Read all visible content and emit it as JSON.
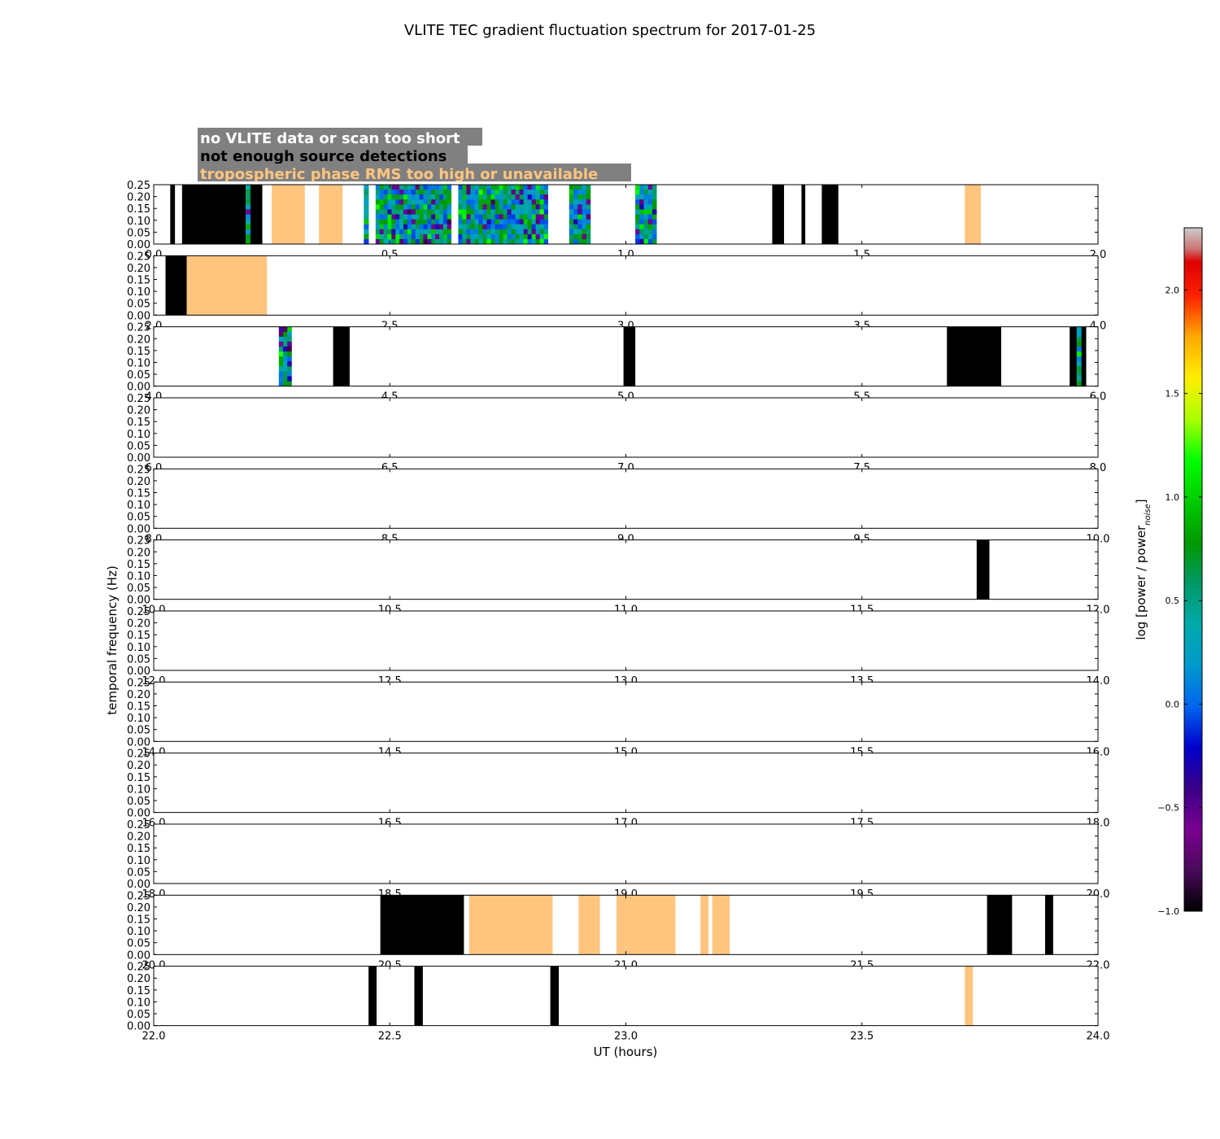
{
  "chart_data": {
    "type": "heatmap",
    "title": "VLITE TEC gradient fluctuation spectrum for 2017-01-25",
    "xlabel": "UT (hours)",
    "ylabel": "temporal frequency (Hz)",
    "ylim": [
      0,
      0.25
    ],
    "yticks": [
      "0.00",
      "0.05",
      "0.10",
      "0.15",
      "0.20",
      "0.25"
    ],
    "legend": [
      {
        "label": "no VLITE data or scan too short",
        "text_color": "#ffffff",
        "category": "white"
      },
      {
        "label": "not enough source detections",
        "text_color": "#000000",
        "category": "black"
      },
      {
        "label": "tropospheric phase RMS too high or unavailable",
        "text_color": "#ffc57f",
        "category": "orange"
      }
    ],
    "colorbar": {
      "label": "log [power / power",
      "label_sub": "noise",
      "label_end": "]",
      "range": [
        -1.0,
        2.3
      ],
      "ticks": [
        "−1.0",
        "−0.5",
        "0.0",
        "0.5",
        "1.0",
        "1.5",
        "2.0"
      ],
      "tick_values": [
        -1.0,
        -0.5,
        0.0,
        0.5,
        1.0,
        1.5,
        2.0
      ]
    },
    "colors": {
      "black": "#000000",
      "orange": "#ffc57f",
      "frame": "#000000",
      "legend_box": "#808080"
    },
    "panels": [
      {
        "xlim": [
          0,
          2
        ],
        "xticks": [
          "0.0",
          "0.5",
          "1.0",
          "1.5",
          "2.0"
        ],
        "segments": [
          {
            "t0": 0.035,
            "t1": 0.045,
            "type": "black"
          },
          {
            "t0": 0.06,
            "t1": 0.195,
            "type": "black"
          },
          {
            "t0": 0.195,
            "t1": 0.205,
            "type": "spectrum",
            "seed": 1
          },
          {
            "t0": 0.205,
            "t1": 0.23,
            "type": "black"
          },
          {
            "t0": 0.25,
            "t1": 0.32,
            "type": "orange"
          },
          {
            "t0": 0.35,
            "t1": 0.4,
            "type": "orange"
          },
          {
            "t0": 0.445,
            "t1": 0.455,
            "type": "spectrum",
            "seed": 2
          },
          {
            "t0": 0.47,
            "t1": 0.63,
            "type": "spectrum",
            "seed": 3
          },
          {
            "t0": 0.645,
            "t1": 0.835,
            "type": "spectrum",
            "seed": 4
          },
          {
            "t0": 0.88,
            "t1": 0.925,
            "type": "spectrum",
            "seed": 5
          },
          {
            "t0": 1.02,
            "t1": 1.065,
            "type": "spectrum",
            "seed": 6
          },
          {
            "t0": 1.31,
            "t1": 1.335,
            "type": "black"
          },
          {
            "t0": 1.372,
            "t1": 1.38,
            "type": "black"
          },
          {
            "t0": 1.415,
            "t1": 1.45,
            "type": "black"
          },
          {
            "t0": 1.718,
            "t1": 1.752,
            "type": "orange"
          }
        ]
      },
      {
        "xlim": [
          2,
          4
        ],
        "xticks": [
          "2.0",
          "2.5",
          "3.0",
          "3.5",
          "4.0"
        ],
        "segments": [
          {
            "t0": 2.025,
            "t1": 2.07,
            "type": "black"
          },
          {
            "t0": 2.07,
            "t1": 2.24,
            "type": "orange"
          }
        ]
      },
      {
        "xlim": [
          4,
          6
        ],
        "xticks": [
          "4.0",
          "4.5",
          "5.0",
          "5.5",
          "6.0"
        ],
        "segments": [
          {
            "t0": 4.265,
            "t1": 4.292,
            "type": "spectrum",
            "seed": 7
          },
          {
            "t0": 4.38,
            "t1": 4.415,
            "type": "black"
          },
          {
            "t0": 4.995,
            "t1": 5.02,
            "type": "black"
          },
          {
            "t0": 5.68,
            "t1": 5.795,
            "type": "black"
          },
          {
            "t0": 5.94,
            "t1": 5.955,
            "type": "black"
          },
          {
            "t0": 5.955,
            "t1": 5.965,
            "type": "spectrum",
            "seed": 8
          },
          {
            "t0": 5.965,
            "t1": 5.975,
            "type": "black"
          }
        ]
      },
      {
        "xlim": [
          6,
          8
        ],
        "xticks": [
          "6.0",
          "6.5",
          "7.0",
          "7.5",
          "8.0"
        ],
        "segments": []
      },
      {
        "xlim": [
          8,
          10
        ],
        "xticks": [
          "8.0",
          "8.5",
          "9.0",
          "9.5",
          "10.0"
        ],
        "segments": []
      },
      {
        "xlim": [
          10,
          12
        ],
        "xticks": [
          "10.0",
          "10.5",
          "11.0",
          "11.5",
          "12.0"
        ],
        "segments": [
          {
            "t0": 11.743,
            "t1": 11.77,
            "type": "black"
          }
        ]
      },
      {
        "xlim": [
          12,
          14
        ],
        "xticks": [
          "12.0",
          "12.5",
          "13.0",
          "13.5",
          "14.0"
        ],
        "segments": []
      },
      {
        "xlim": [
          14,
          16
        ],
        "xticks": [
          "14.0",
          "14.5",
          "15.0",
          "15.5",
          "16.0"
        ],
        "segments": []
      },
      {
        "xlim": [
          16,
          18
        ],
        "xticks": [
          "16.0",
          "16.5",
          "17.0",
          "17.5",
          "18.0"
        ],
        "segments": []
      },
      {
        "xlim": [
          18,
          20
        ],
        "xticks": [
          "18.0",
          "18.5",
          "19.0",
          "19.5",
          "20.0"
        ],
        "segments": []
      },
      {
        "xlim": [
          20,
          22
        ],
        "xticks": [
          "20.0",
          "20.5",
          "21.0",
          "21.5",
          "22.0"
        ],
        "segments": [
          {
            "t0": 20.48,
            "t1": 20.657,
            "type": "black"
          },
          {
            "t0": 20.668,
            "t1": 20.845,
            "type": "orange"
          },
          {
            "t0": 20.9,
            "t1": 20.945,
            "type": "orange"
          },
          {
            "t0": 20.98,
            "t1": 21.105,
            "type": "orange"
          },
          {
            "t0": 21.158,
            "t1": 21.175,
            "type": "orange"
          },
          {
            "t0": 21.183,
            "t1": 21.22,
            "type": "orange"
          },
          {
            "t0": 21.765,
            "t1": 21.818,
            "type": "black"
          },
          {
            "t0": 21.888,
            "t1": 21.905,
            "type": "black"
          }
        ]
      },
      {
        "xlim": [
          22,
          24
        ],
        "xticks": [
          "22.0",
          "22.5",
          "23.0",
          "23.5",
          "24.0"
        ],
        "segments": [
          {
            "t0": 22.455,
            "t1": 22.472,
            "type": "black"
          },
          {
            "t0": 22.552,
            "t1": 22.57,
            "type": "black"
          },
          {
            "t0": 22.84,
            "t1": 22.858,
            "type": "black"
          },
          {
            "t0": 23.718,
            "t1": 23.735,
            "type": "orange"
          }
        ]
      }
    ]
  }
}
